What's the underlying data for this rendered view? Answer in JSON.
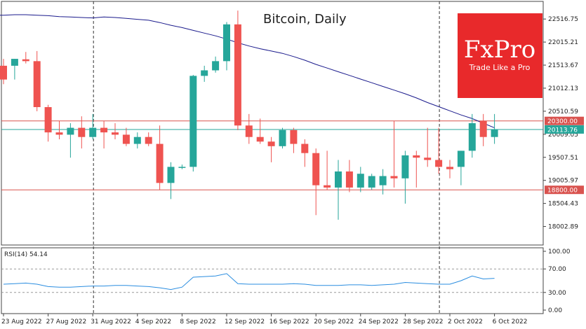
{
  "chart_data": [
    {
      "type": "candlestick",
      "title": "Bitcoin, Daily",
      "ylim": [
        17600,
        22900
      ],
      "y_ticks": [
        "22516.75",
        "22015.21",
        "21513.67",
        "21012.13",
        "20510.59",
        "20009.05",
        "19507.51",
        "19005.97",
        "18504.43",
        "18002.89"
      ],
      "x_ticks": [
        {
          "i": 0,
          "label": "23 Aug 2022"
        },
        {
          "i": 4,
          "label": "27 Aug 2022"
        },
        {
          "i": 8,
          "label": "31 Aug 2022"
        },
        {
          "i": 12,
          "label": "4 Sep 2022"
        },
        {
          "i": 16,
          "label": "8 Sep 2022"
        },
        {
          "i": 20,
          "label": "12 Sep 2022"
        },
        {
          "i": 24,
          "label": "16 Sep 2022"
        },
        {
          "i": 28,
          "label": "20 Sep 2022"
        },
        {
          "i": 32,
          "label": "24 Sep 2022"
        },
        {
          "i": 36,
          "label": "28 Sep 2022"
        },
        {
          "i": 40,
          "label": "2 Oct 2022"
        },
        {
          "i": 44,
          "label": "6 Oct 2022"
        }
      ],
      "vlines_at_index": [
        8,
        39
      ],
      "hlines": [
        {
          "value": 20300,
          "label": "20300.00",
          "color": "#d9534f"
        },
        {
          "value": 18800,
          "label": "18800.00",
          "color": "#d9534f"
        }
      ],
      "current_price": {
        "value": 20113.76,
        "label": "20113.76",
        "color": "#26a69a"
      },
      "candles": [
        {
          "o": 21500,
          "h": 21650,
          "l": 21100,
          "c": 21200
        },
        {
          "o": 21500,
          "h": 21650,
          "l": 21200,
          "c": 21650
        },
        {
          "o": 21640,
          "h": 21800,
          "l": 21550,
          "c": 21600
        },
        {
          "o": 21600,
          "h": 21820,
          "l": 20510,
          "c": 20600
        },
        {
          "o": 20600,
          "h": 20650,
          "l": 19850,
          "c": 20050
        },
        {
          "o": 20050,
          "h": 20300,
          "l": 19900,
          "c": 20000
        },
        {
          "o": 20000,
          "h": 20250,
          "l": 19500,
          "c": 20150
        },
        {
          "o": 20150,
          "h": 20400,
          "l": 19700,
          "c": 19950
        },
        {
          "o": 19950,
          "h": 20450,
          "l": 19900,
          "c": 20150
        },
        {
          "o": 20150,
          "h": 20300,
          "l": 19700,
          "c": 20050
        },
        {
          "o": 20050,
          "h": 20250,
          "l": 19900,
          "c": 20000
        },
        {
          "o": 20000,
          "h": 20150,
          "l": 19750,
          "c": 19800
        },
        {
          "o": 19800,
          "h": 20050,
          "l": 19700,
          "c": 19950
        },
        {
          "o": 19950,
          "h": 20050,
          "l": 19750,
          "c": 19800
        },
        {
          "o": 19800,
          "h": 20200,
          "l": 18800,
          "c": 18950
        },
        {
          "o": 18950,
          "h": 19400,
          "l": 18600,
          "c": 19300
        },
        {
          "o": 19300,
          "h": 19350,
          "l": 19250,
          "c": 19300
        },
        {
          "o": 19300,
          "h": 21300,
          "l": 19200,
          "c": 21280
        },
        {
          "o": 21280,
          "h": 21500,
          "l": 21150,
          "c": 21400
        },
        {
          "o": 21400,
          "h": 21700,
          "l": 21350,
          "c": 21600
        },
        {
          "o": 21600,
          "h": 22450,
          "l": 21400,
          "c": 22400
        },
        {
          "o": 22400,
          "h": 22700,
          "l": 20100,
          "c": 20200
        },
        {
          "o": 20200,
          "h": 20450,
          "l": 19800,
          "c": 19950
        },
        {
          "o": 19950,
          "h": 20350,
          "l": 19800,
          "c": 19850
        },
        {
          "o": 19850,
          "h": 19950,
          "l": 19400,
          "c": 19750
        },
        {
          "o": 19750,
          "h": 20150,
          "l": 19700,
          "c": 20100
        },
        {
          "o": 20100,
          "h": 20150,
          "l": 19600,
          "c": 19800
        },
        {
          "o": 19800,
          "h": 19900,
          "l": 19300,
          "c": 19600
        },
        {
          "o": 19600,
          "h": 19700,
          "l": 18250,
          "c": 18900
        },
        {
          "o": 18900,
          "h": 19650,
          "l": 18800,
          "c": 18850
        },
        {
          "o": 18850,
          "h": 19450,
          "l": 18150,
          "c": 19200
        },
        {
          "o": 19200,
          "h": 19450,
          "l": 18750,
          "c": 18850
        },
        {
          "o": 18850,
          "h": 19300,
          "l": 18750,
          "c": 19150
        },
        {
          "o": 18850,
          "h": 19150,
          "l": 18800,
          "c": 19100
        },
        {
          "o": 18900,
          "h": 19250,
          "l": 18700,
          "c": 19100
        },
        {
          "o": 19100,
          "h": 20300,
          "l": 18850,
          "c": 19050
        },
        {
          "o": 19050,
          "h": 19650,
          "l": 18500,
          "c": 19550
        },
        {
          "o": 19550,
          "h": 19650,
          "l": 18850,
          "c": 19500
        },
        {
          "o": 19500,
          "h": 20150,
          "l": 19300,
          "c": 19450
        },
        {
          "o": 19450,
          "h": 20150,
          "l": 19150,
          "c": 19300
        },
        {
          "o": 19300,
          "h": 19450,
          "l": 19050,
          "c": 19250
        },
        {
          "o": 19300,
          "h": 19650,
          "l": 18900,
          "c": 19650
        },
        {
          "o": 19650,
          "h": 20450,
          "l": 19500,
          "c": 20250
        },
        {
          "o": 20300,
          "h": 20450,
          "l": 19750,
          "c": 19950
        },
        {
          "o": 19950,
          "h": 20450,
          "l": 19800,
          "c": 20113.76
        }
      ],
      "ma_line": [
        22600,
        22610,
        22610,
        22600,
        22590,
        22570,
        22560,
        22550,
        22540,
        22560,
        22550,
        22530,
        22510,
        22490,
        22440,
        22380,
        22330,
        22270,
        22210,
        22150,
        22080,
        22000,
        21930,
        21870,
        21820,
        21770,
        21700,
        21620,
        21530,
        21450,
        21370,
        21290,
        21210,
        21130,
        21050,
        20970,
        20890,
        20800,
        20700,
        20610,
        20520,
        20430,
        20350,
        20250,
        20150
      ],
      "ma_color": "#1a1a8c",
      "up_color": "#26a69a",
      "down_color": "#ef5350"
    },
    {
      "type": "line",
      "name": "RSI(14) 54.14",
      "ylim": [
        0,
        100
      ],
      "y_ticks": [
        "100.00",
        "70.00",
        "30.00",
        "0.00"
      ],
      "levels": [
        70,
        30
      ],
      "values": [
        44,
        45,
        46,
        44,
        40,
        39,
        39,
        40,
        41,
        41,
        42,
        42,
        41,
        40,
        38,
        35,
        39,
        56,
        57,
        58,
        62,
        45,
        44,
        44,
        44,
        44,
        45,
        44,
        42,
        42,
        42,
        43,
        43,
        42,
        43,
        44,
        47,
        46,
        45,
        44,
        44,
        50,
        58,
        53,
        54
      ]
    }
  ],
  "logo": {
    "brand": "FxPro",
    "tagline": "Trade Like a Pro",
    "color": "#e8292b"
  },
  "colors": {
    "grid": "#cfcfcf",
    "hline": "#d9534f",
    "current": "#26a69a",
    "rsi_line": "#2a8de0"
  }
}
